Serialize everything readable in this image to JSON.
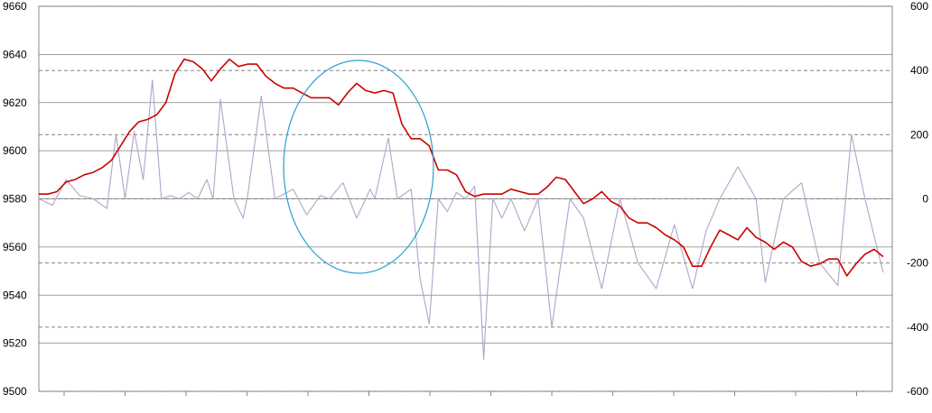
{
  "chart_data": {
    "type": "line",
    "title": "",
    "xlabel": "",
    "ylabel": "",
    "grid": true,
    "legend": "none",
    "left_axis": {
      "ylim": [
        9500,
        9660
      ],
      "ticks": [
        "9660",
        "9640",
        "9620",
        "9600",
        "9580",
        "9560",
        "9540",
        "9520",
        "9500"
      ]
    },
    "right_axis": {
      "ylim": [
        -600,
        600
      ],
      "ticks": [
        "600",
        "400",
        "200",
        "0",
        "-200",
        "-400",
        "-600"
      ]
    },
    "series": [
      {
        "axis": "left",
        "color": "#cc0000",
        "x": [
          0,
          10,
          20,
          30,
          40,
          50,
          60,
          70,
          80,
          90,
          100,
          110,
          120,
          130,
          140,
          150,
          160,
          170,
          180,
          190,
          200,
          210,
          220,
          230,
          240,
          250,
          260,
          270,
          280,
          290,
          300,
          310,
          320,
          330,
          340,
          350,
          360,
          370,
          380,
          390,
          400,
          410,
          420,
          430,
          440,
          450,
          460,
          470,
          480,
          490,
          500,
          510,
          520,
          530,
          540,
          550,
          560,
          570,
          580,
          590,
          600,
          610,
          620,
          630,
          640,
          650,
          660,
          670,
          680,
          690,
          700,
          710,
          720,
          730,
          740,
          750,
          760,
          770,
          780,
          790,
          800,
          810,
          820,
          830,
          840,
          850,
          860,
          870,
          880,
          890,
          900,
          910,
          920,
          930
        ],
        "values": [
          9582,
          9582,
          9583,
          9587,
          9588,
          9590,
          9591,
          9593,
          9596,
          9602,
          9608,
          9612,
          9613,
          9615,
          9620,
          9632,
          9638,
          9637,
          9634,
          9629,
          9634,
          9638,
          9635,
          9636,
          9636,
          9631,
          9628,
          9626,
          9626,
          9624,
          9622,
          9622,
          9622,
          9619,
          9624,
          9628,
          9625,
          9624,
          9625,
          9624,
          9611,
          9605,
          9605,
          9602,
          9592,
          9592,
          9590,
          9583,
          9581,
          9582,
          9582,
          9582,
          9584,
          9583,
          9582,
          9582,
          9585,
          9589,
          9588,
          9583,
          9578,
          9580,
          9583,
          9579,
          9577,
          9572,
          9570,
          9570,
          9568,
          9565,
          9563,
          9560,
          9552,
          9552,
          9560,
          9567,
          9565,
          9563,
          9568,
          9564,
          9562,
          9559,
          9562,
          9560,
          9554,
          9552,
          9553,
          9555,
          9555,
          9548,
          9553,
          9557,
          9559,
          9556
        ]
      },
      {
        "axis": "right",
        "color": "#b0a4c8",
        "x": [
          0,
          15,
          30,
          45,
          60,
          75,
          85,
          95,
          105,
          115,
          125,
          135,
          145,
          155,
          165,
          175,
          185,
          192,
          200,
          215,
          225,
          230,
          245,
          260,
          280,
          295,
          310,
          320,
          335,
          350,
          365,
          370,
          385,
          395,
          410,
          420,
          430,
          440,
          450,
          460,
          470,
          480,
          490,
          500,
          510,
          520,
          535,
          550,
          565,
          585,
          600,
          620,
          640,
          660,
          680,
          700,
          720,
          735,
          750,
          770,
          790,
          800,
          820,
          840,
          860,
          880,
          895,
          910,
          930
        ],
        "values": [
          0,
          -20,
          60,
          10,
          0,
          -30,
          200,
          0,
          210,
          60,
          370,
          0,
          10,
          0,
          20,
          0,
          60,
          0,
          310,
          0,
          -60,
          10,
          320,
          0,
          30,
          -50,
          10,
          0,
          50,
          -60,
          30,
          0,
          190,
          0,
          30,
          -250,
          -390,
          0,
          -40,
          20,
          0,
          40,
          -500,
          0,
          -60,
          0,
          -100,
          0,
          -400,
          0,
          -60,
          -280,
          0,
          -200,
          -280,
          -80,
          -280,
          -100,
          0,
          100,
          0,
          -260,
          0,
          50,
          -200,
          -270,
          200,
          0,
          -230
        ]
      }
    ]
  }
}
